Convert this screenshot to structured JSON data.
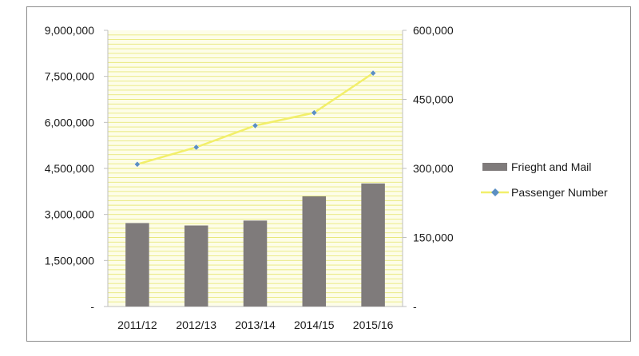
{
  "chart_data": {
    "type": "bar",
    "categories": [
      "2011/12",
      "2012/13",
      "2013/14",
      "2014/15",
      "2015/16"
    ],
    "series": [
      {
        "name": "Frieght and Mail",
        "type": "bar",
        "axis": "left",
        "values": [
          2720000,
          2640000,
          2800000,
          3590000,
          4010000
        ]
      },
      {
        "name": "Passenger Number",
        "type": "line",
        "axis": "right",
        "values": [
          309000,
          346000,
          393000,
          421000,
          507000
        ]
      }
    ],
    "left_axis": {
      "min": 0,
      "max": 9000000,
      "ticks": [
        {
          "value": 0,
          "label": "-"
        },
        {
          "value": 1500000,
          "label": "1,500,000"
        },
        {
          "value": 3000000,
          "label": "3,000,000"
        },
        {
          "value": 4500000,
          "label": "4,500,000"
        },
        {
          "value": 6000000,
          "label": "6,000,000"
        },
        {
          "value": 7500000,
          "label": "7,500,000"
        },
        {
          "value": 9000000,
          "label": "9,000,000"
        }
      ]
    },
    "right_axis": {
      "min": 0,
      "max": 600000,
      "ticks": [
        {
          "value": 0,
          "label": "-"
        },
        {
          "value": 150000,
          "label": "150,000"
        },
        {
          "value": 300000,
          "label": "300,000"
        },
        {
          "value": 450000,
          "label": "450,000"
        },
        {
          "value": 600000,
          "label": "600,000"
        }
      ]
    },
    "grid": true,
    "legend_position": "right",
    "colors": {
      "plot_background": "#fdfde8",
      "gridline": "#e8e87a",
      "bar": "#7f7b7b",
      "line": "#f2ef6a",
      "marker": "#5b8fc2"
    }
  }
}
